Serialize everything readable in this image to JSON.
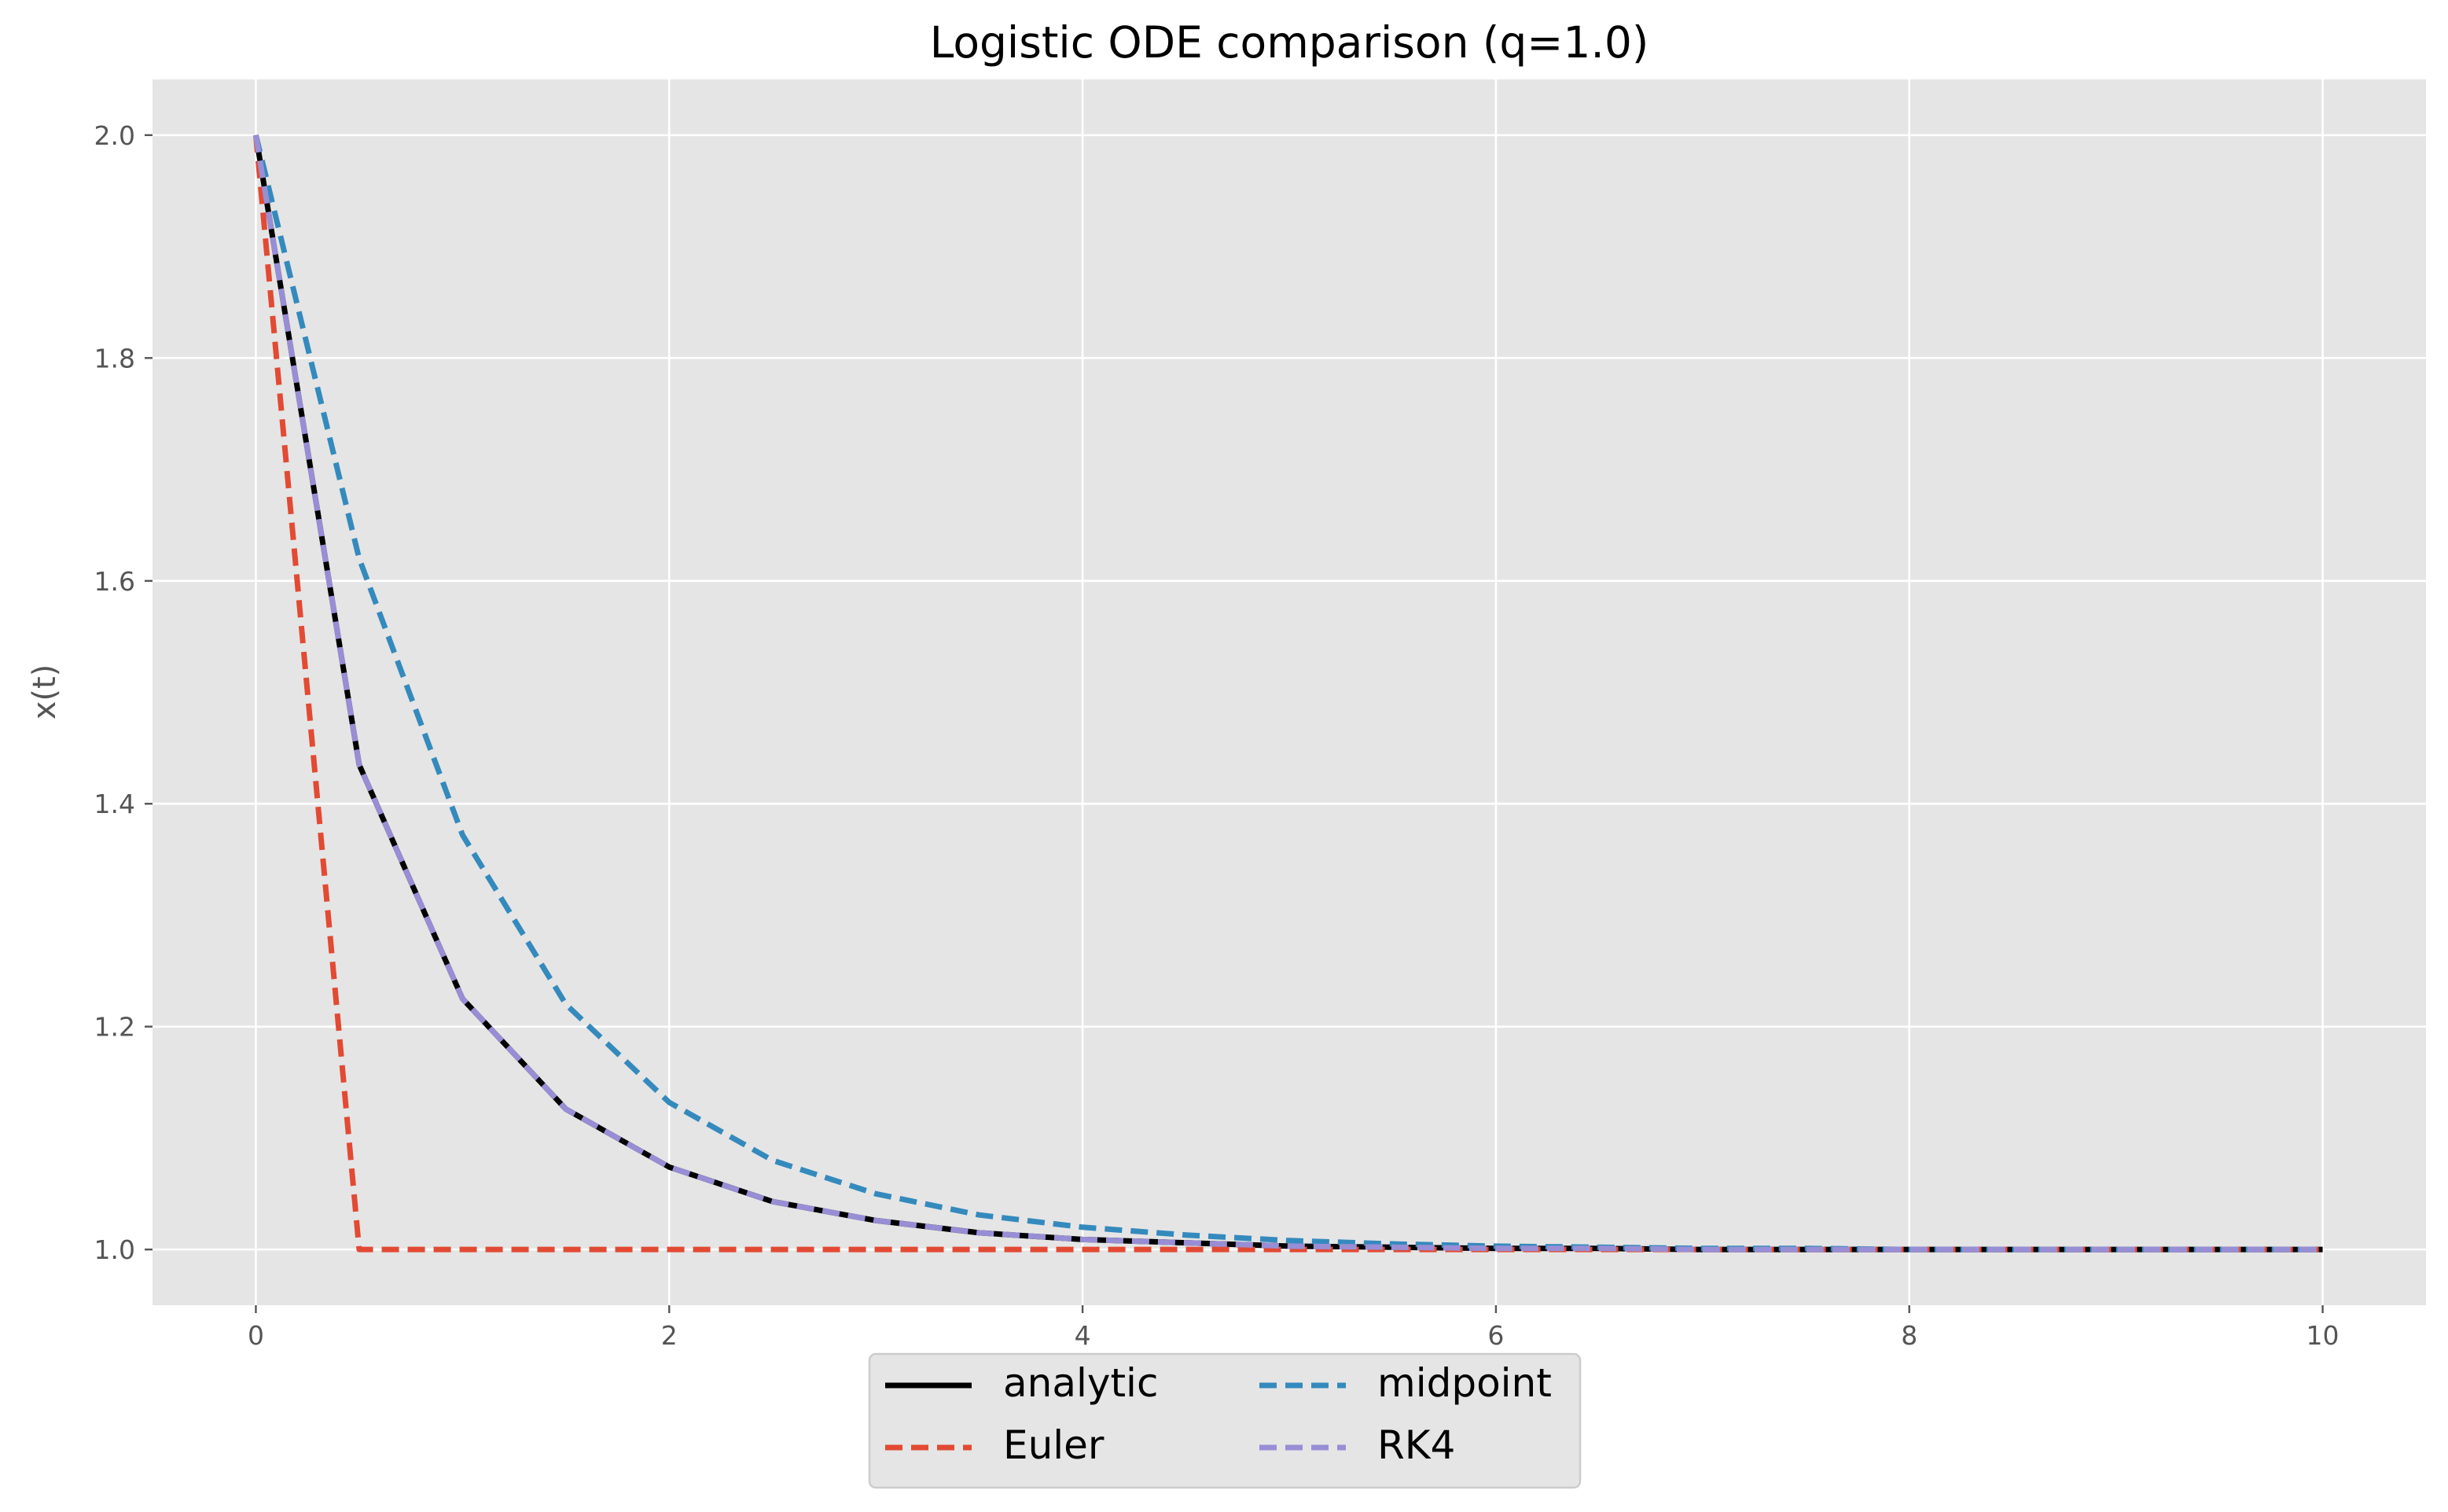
{
  "chart_data": {
    "type": "line",
    "title": "Logistic ODE comparison (q=1.0)",
    "xlabel": "",
    "ylabel": "x(t)",
    "xlim": [
      -0.5,
      10.5
    ],
    "ylim": [
      0.95,
      2.05
    ],
    "xticks": [
      0,
      2,
      4,
      6,
      8,
      10
    ],
    "yticks": [
      1.0,
      1.2,
      1.4,
      1.6,
      1.8,
      2.0
    ],
    "xtick_labels": [
      "0",
      "2",
      "4",
      "6",
      "8",
      "10"
    ],
    "ytick_labels": [
      "1.0",
      "1.2",
      "1.4",
      "1.6",
      "1.8",
      "2.0"
    ],
    "grid": true,
    "legend_position": "bottom-center",
    "legend_columns": 2,
    "x": [
      0,
      0.5,
      1,
      1.5,
      2,
      2.5,
      3,
      3.5,
      4,
      4.5,
      5,
      5.5,
      6,
      6.5,
      7,
      7.5,
      8,
      8.5,
      9,
      9.5,
      10
    ],
    "series": [
      {
        "name": "analytic",
        "color": "#000000",
        "style": "solid",
        "values": [
          2.0,
          1.435,
          1.225,
          1.126,
          1.074,
          1.043,
          1.026,
          1.015,
          1.009,
          1.006,
          1.003,
          1.002,
          1.001,
          1.001,
          1.0,
          1.0,
          1.0,
          1.0,
          1.0,
          1.0,
          1.0
        ]
      },
      {
        "name": "Euler",
        "color": "#E24A33",
        "style": "dashed",
        "values": [
          2.0,
          1.0,
          1.0,
          1.0,
          1.0,
          1.0,
          1.0,
          1.0,
          1.0,
          1.0,
          1.0,
          1.0,
          1.0,
          1.0,
          1.0,
          1.0,
          1.0,
          1.0,
          1.0,
          1.0,
          1.0
        ]
      },
      {
        "name": "midpoint",
        "color": "#348ABD",
        "style": "dashed",
        "values": [
          2.0,
          1.62,
          1.372,
          1.22,
          1.132,
          1.08,
          1.05,
          1.031,
          1.02,
          1.013,
          1.008,
          1.005,
          1.003,
          1.002,
          1.001,
          1.001,
          1.0,
          1.0,
          1.0,
          1.0,
          1.0
        ]
      },
      {
        "name": "RK4",
        "color": "#988ED5",
        "style": "dashed",
        "values": [
          2.0,
          1.435,
          1.225,
          1.126,
          1.074,
          1.043,
          1.026,
          1.015,
          1.009,
          1.006,
          1.003,
          1.002,
          1.001,
          1.001,
          1.0,
          1.0,
          1.0,
          1.0,
          1.0,
          1.0,
          1.0
        ]
      }
    ]
  }
}
